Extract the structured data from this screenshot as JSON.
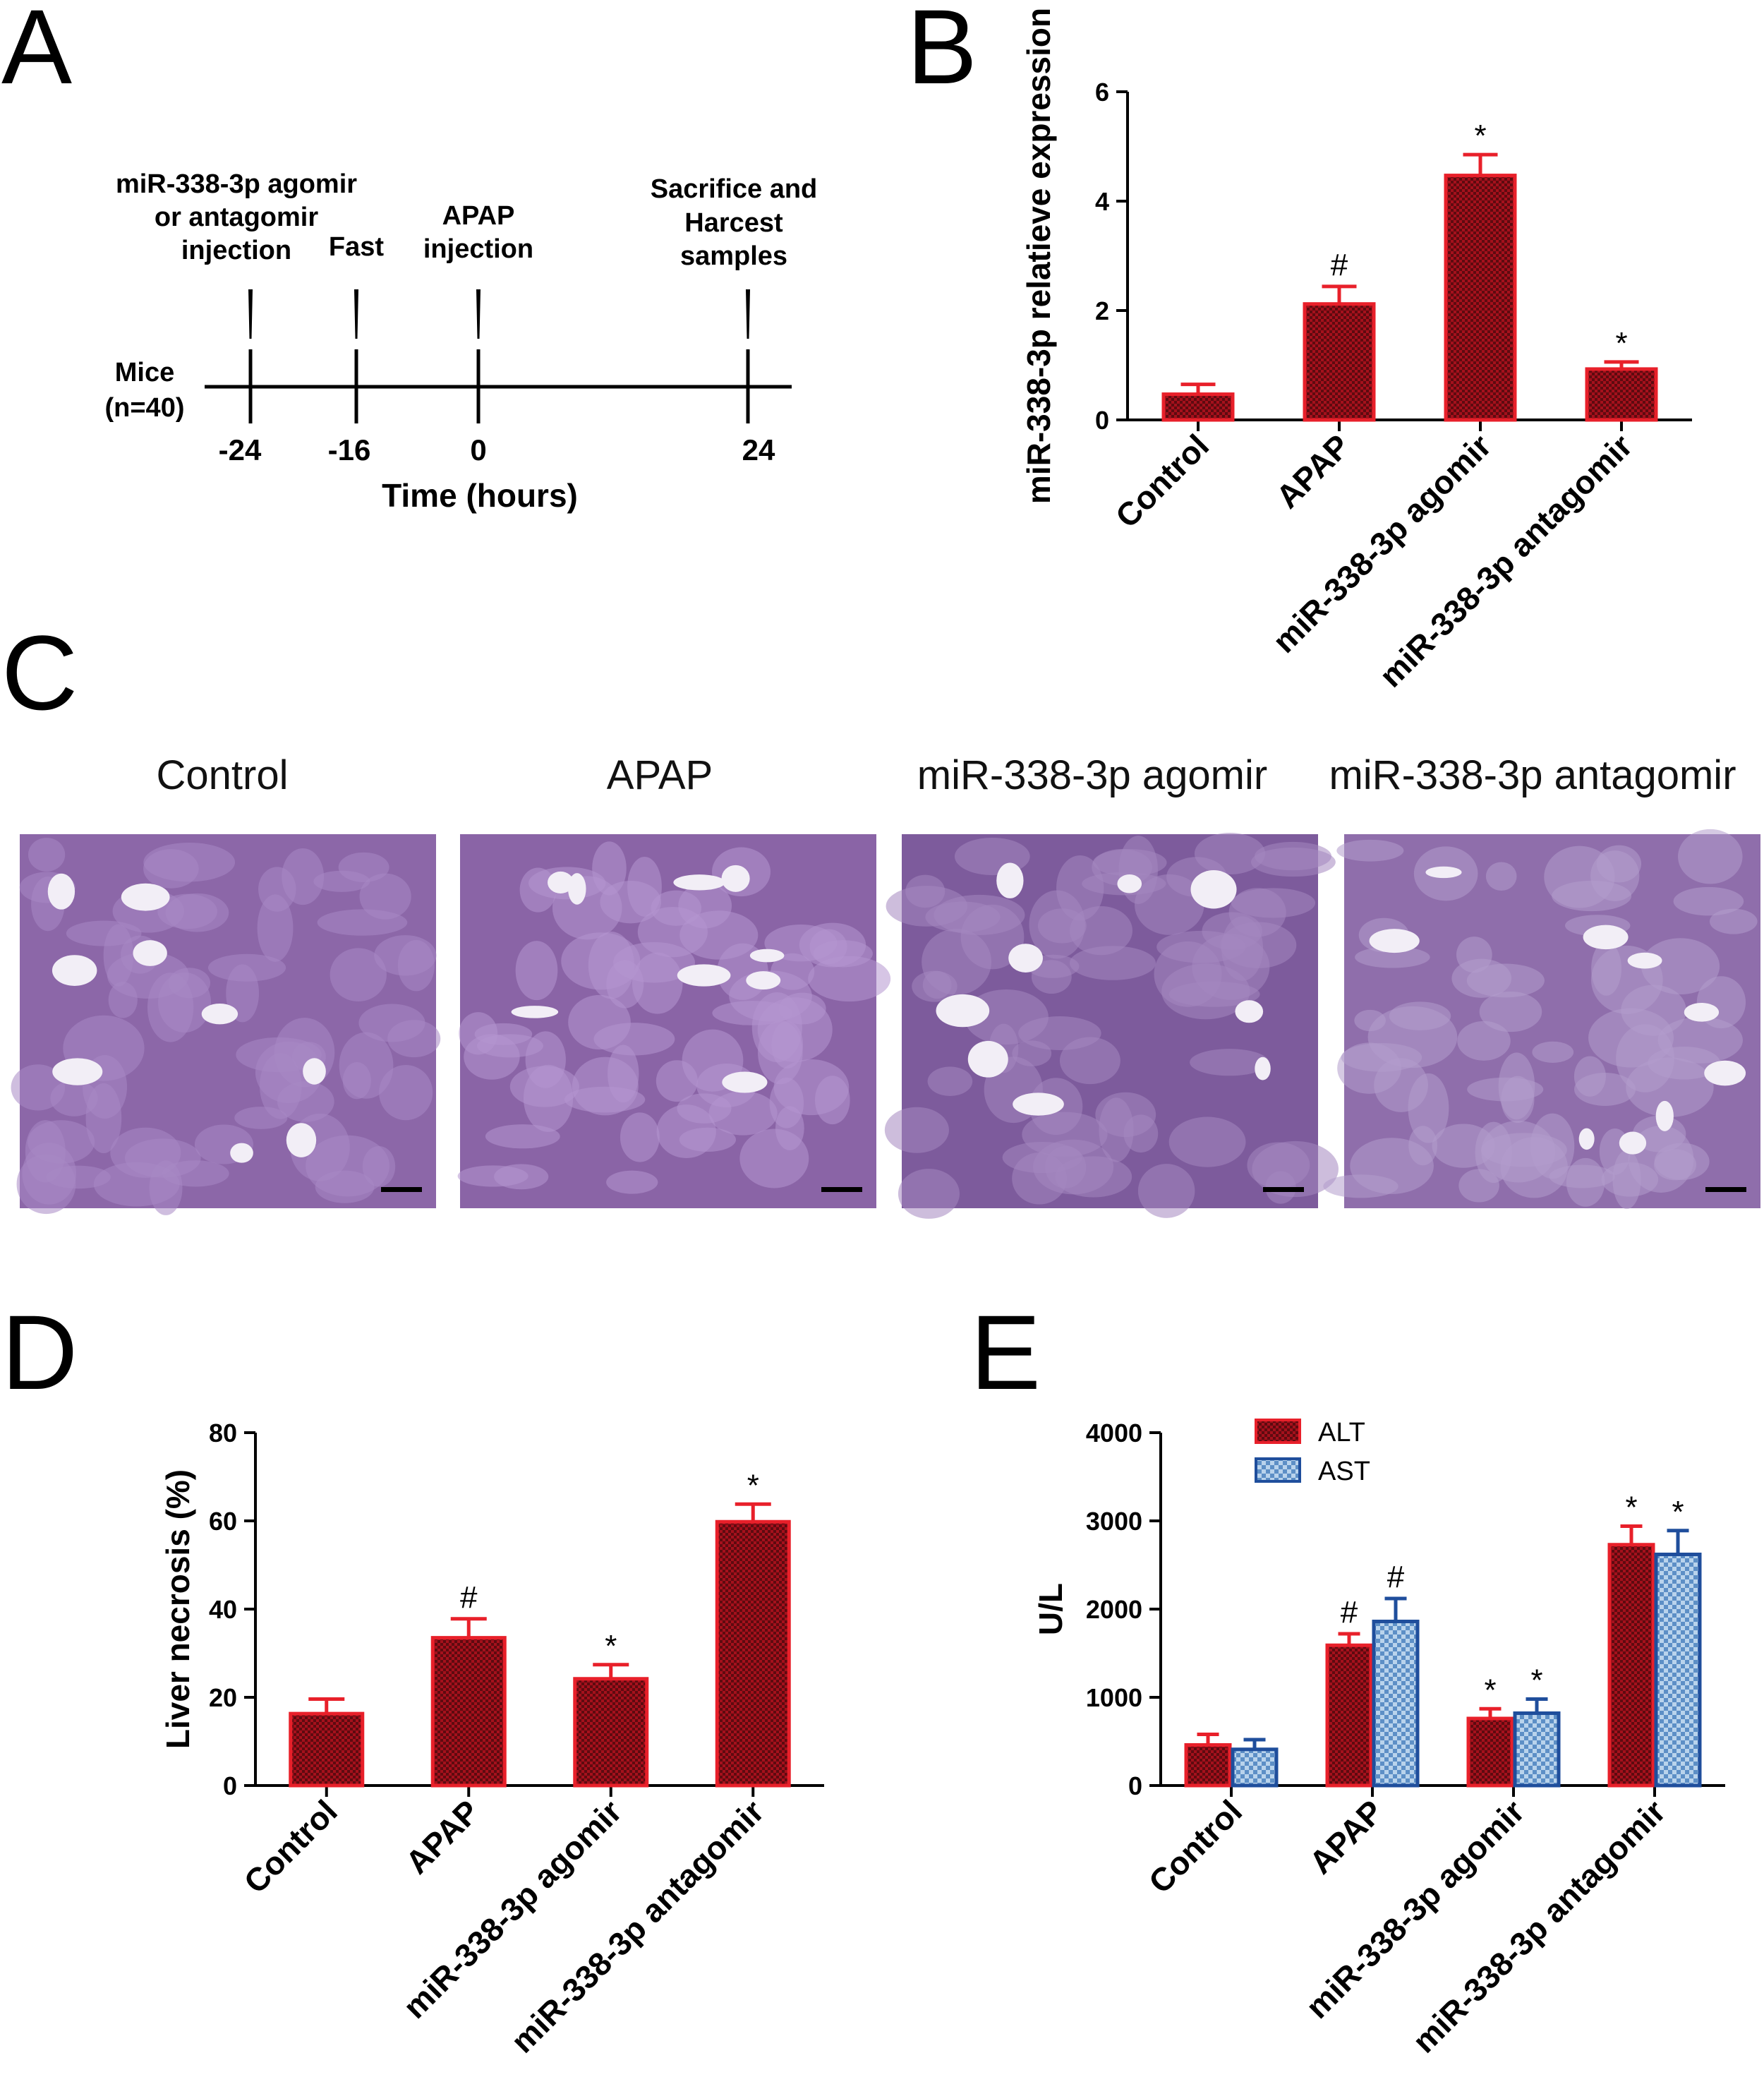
{
  "panels": {
    "A": {
      "letter": "A",
      "subject_label_line1": "Mice",
      "subject_label_line2": "(n=40)",
      "axis_label": "Time (hours)",
      "ticks": [
        "-24",
        "-16",
        "0",
        "24"
      ],
      "events": [
        {
          "lines": [
            "miR-338-3p agomir",
            "or antagomir",
            "injection"
          ]
        },
        {
          "lines": [
            "Fast"
          ]
        },
        {
          "lines": [
            "APAP",
            "injection"
          ]
        },
        {
          "lines": [
            "Sacrifice and",
            "Harcest",
            "samples"
          ]
        }
      ]
    },
    "B": {
      "letter": "B"
    },
    "C": {
      "letter": "C",
      "images": [
        {
          "label": "Control",
          "colors": [
            "#8c67a8",
            "#a888c4",
            "#cdb8e0"
          ]
        },
        {
          "label": "APAP",
          "colors": [
            "#8a64a6",
            "#b596cf",
            "#d7c5e6"
          ]
        },
        {
          "label": "miR-338-3p agomir",
          "colors": [
            "#7d5b9c",
            "#a486c0",
            "#d0bde2"
          ]
        },
        {
          "label": "miR-338-3p antagomir",
          "colors": [
            "#8f6eab",
            "#b39ccc",
            "#c9b4de"
          ]
        }
      ]
    },
    "D": {
      "letter": "D"
    },
    "E": {
      "letter": "E"
    }
  },
  "colors": {
    "red_fill": "#a5111c",
    "red_edge": "#e8202a",
    "blue_fill": "#8fb6dc",
    "blue_edge": "#1f4e9c",
    "axis": "#000000"
  },
  "chart_data": [
    {
      "id": "B",
      "type": "bar",
      "categories": [
        "Control",
        "APAP",
        "miR-338-3p agomir",
        "miR-338-3p antagomir"
      ],
      "values": [
        0.47,
        2.12,
        4.47,
        0.93
      ],
      "errors": [
        0.18,
        0.32,
        0.38,
        0.13
      ],
      "annotations": [
        "",
        "#",
        "*",
        "*"
      ],
      "ylabel": "miR-338-3p relatieve expression",
      "ylim": [
        0,
        6
      ],
      "yticks": [
        0,
        2,
        4,
        6
      ]
    },
    {
      "id": "D",
      "type": "bar",
      "categories": [
        "Control",
        "APAP",
        "miR-338-3p agomir",
        "miR-338-3p antagomir"
      ],
      "values": [
        16.3,
        33.5,
        24.2,
        59.8
      ],
      "errors": [
        3.3,
        4.3,
        3.2,
        4.0
      ],
      "annotations": [
        "",
        "#",
        "*",
        "*"
      ],
      "ylabel": "Liver necrosis (%)",
      "ylim": [
        0,
        80
      ],
      "yticks": [
        0,
        20,
        40,
        60,
        80
      ]
    },
    {
      "id": "E",
      "type": "bar",
      "categories": [
        "Control",
        "APAP",
        "miR-338-3p agomir",
        "miR-338-3p antagomir"
      ],
      "series": [
        {
          "name": "ALT",
          "values": [
            460,
            1590,
            760,
            2730
          ],
          "errors": [
            120,
            130,
            110,
            210
          ],
          "annotations": [
            "",
            "#",
            "*",
            "*"
          ]
        },
        {
          "name": "AST",
          "values": [
            410,
            1860,
            820,
            2620
          ],
          "errors": [
            110,
            260,
            160,
            270
          ],
          "annotations": [
            "",
            "#",
            "*",
            "*"
          ]
        }
      ],
      "ylabel": "U/L",
      "ylim": [
        0,
        4000
      ],
      "yticks": [
        0,
        1000,
        2000,
        3000,
        4000
      ],
      "legend_position": "top-left"
    }
  ]
}
